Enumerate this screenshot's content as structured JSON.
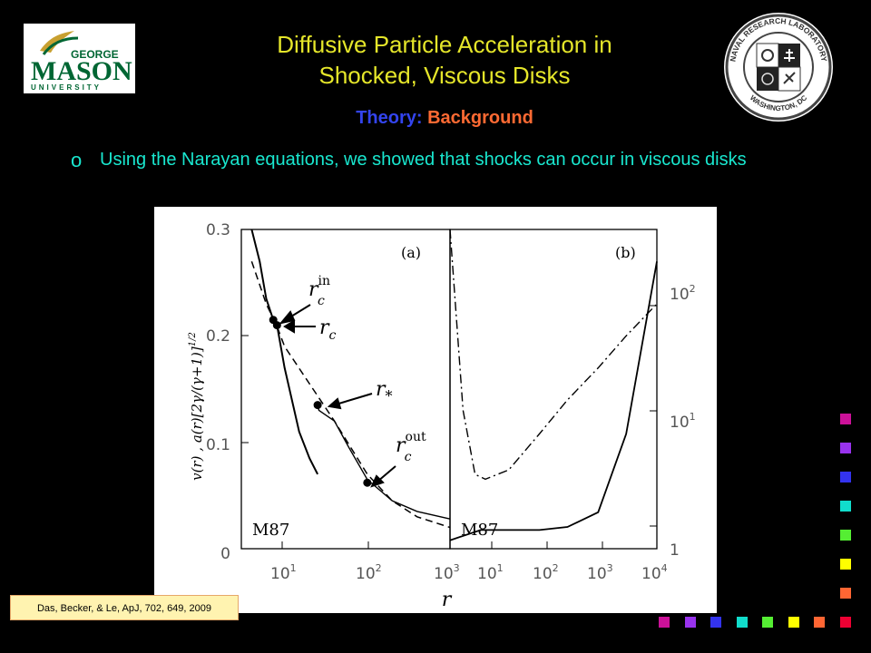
{
  "left_logo": {
    "line1": "GEORGE",
    "line2": "MASON",
    "line3": "UNIVERSITY",
    "colors": {
      "green": "#006633",
      "gold": "#ffcc33"
    }
  },
  "right_logo": {
    "name": "naval-research-laboratory-seal",
    "ring_top": "NAVAL RESEARCH LABORATORY",
    "ring_bottom": "WASHINGTON, DC"
  },
  "title": {
    "line1": "Diffusive Particle Acceleration in",
    "line2": "Shocked, Viscous Disks",
    "color": "#e5e62a"
  },
  "subtitle": {
    "part1": "Theory:",
    "part2": "Background",
    "color1": "#3344ee",
    "color2": "#ff6a33"
  },
  "bullet": {
    "mark": "o",
    "text": "Using the Narayan equations, we showed that shocks can occur in viscous disks",
    "color": "#19e7cf"
  },
  "figure": {
    "ylabel": "v(r) , a(r)[2γ/(γ+1)]1/2",
    "xlabel": "r",
    "left_ticks_y": [
      "0.3",
      "0.2",
      "0.1",
      "0"
    ],
    "right_ticks_y": [
      "102",
      "101",
      "1"
    ],
    "x_ticks_left": [
      "101",
      "102",
      "103"
    ],
    "x_ticks_right": [
      "101",
      "102",
      "103",
      "104"
    ],
    "panel_a_label": "(a)",
    "panel_b_label": "(b)",
    "panel_a_name": "M87",
    "panel_b_name": "M87",
    "annotations": {
      "rc_in": "rcin",
      "rc": "rc",
      "r_star": "r*",
      "rc_out": "rcout"
    }
  },
  "chart_data": [
    {
      "type": "line",
      "title": "(a)",
      "xlabel": "r",
      "ylabel": "v(r) , a(r)[2γ/(γ+1)]1/2",
      "x_scale": "log",
      "xlim": [
        3,
        1000
      ],
      "ylim": [
        0,
        0.3
      ],
      "series": [
        {
          "x": [
            4,
            5,
            6,
            7.3,
            8.1,
            10,
            15,
            20,
            25.1
          ],
          "y": [
            0.3,
            0.27,
            0.235,
            0.215,
            0.21,
            0.17,
            0.11,
            0.085,
            0.07
          ]
        },
        {
          "x": [
            25.1,
            26,
            40,
            60,
            100,
            200,
            400,
            1000
          ],
          "y": [
            0.135,
            0.13,
            0.12,
            0.095,
            0.065,
            0.045,
            0.035,
            0.028
          ]
        },
        {
          "x": [
            4,
            6,
            8,
            10,
            20,
            40,
            100,
            200,
            400,
            1000
          ],
          "y": [
            0.27,
            0.23,
            0.21,
            0.19,
            0.155,
            0.12,
            0.07,
            0.045,
            0.03,
            0.02
          ]
        }
      ],
      "points": [
        {
          "label": "rcin",
          "x": 7.3,
          "y": 0.215
        },
        {
          "label": "rc",
          "x": 8.1,
          "y": 0.21
        },
        {
          "label": "r*",
          "x": 25.1,
          "y": 0.135
        },
        {
          "label": "rcout",
          "x": 100,
          "y": 0.062
        }
      ]
    },
    {
      "type": "line",
      "title": "(b)",
      "xlabel": "r",
      "x_scale": "log",
      "y_scale": "log",
      "xlim": [
        3,
        10000
      ],
      "ylim": [
        1,
        1000
      ],
      "series": [
        {
          "x": [
            3,
            10,
            30,
            100,
            300,
            1000,
            3000,
            10000
          ],
          "y": [
            1.2,
            1.5,
            1.5,
            1.5,
            1.6,
            2.2,
            12,
            500
          ]
        },
        {
          "x": [
            3,
            5,
            8,
            12,
            30,
            100,
            300,
            1000,
            3000,
            10000
          ],
          "y": [
            1000,
            20,
            5,
            4.5,
            5.5,
            12,
            25,
            50,
            100,
            200
          ]
        }
      ]
    }
  ],
  "citation": "Das, Becker, & Le, ApJ, 702, 649, 2009",
  "nav_colors": [
    "#cc1199",
    "#9933ee",
    "#3333ee",
    "#11ddcc",
    "#55ee33",
    "#ffff00",
    "#ff6633",
    "#ee0033"
  ]
}
